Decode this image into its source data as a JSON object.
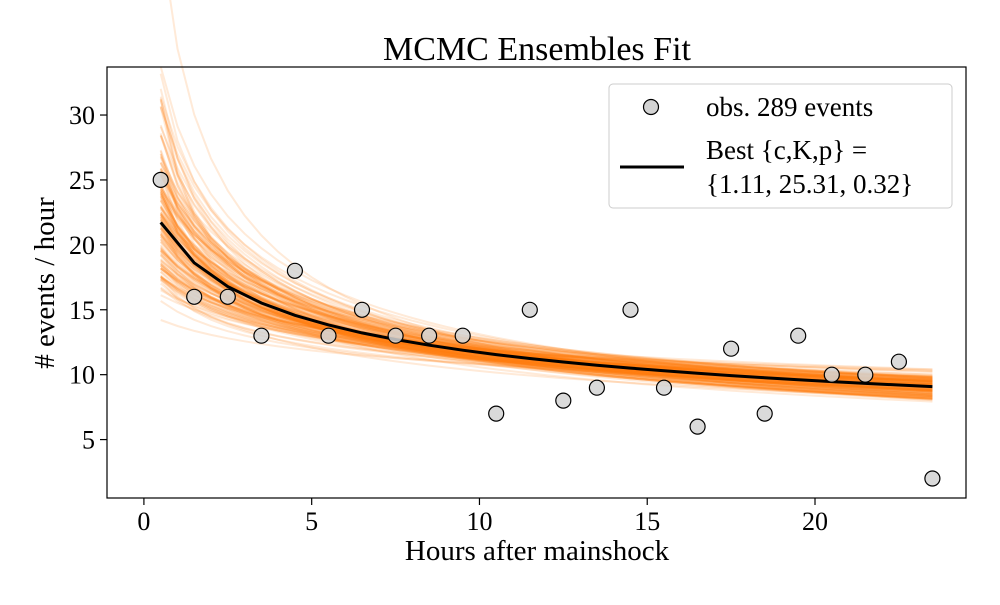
{
  "chart_data": {
    "type": "scatter",
    "title": "MCMC Ensembles Fit",
    "xlabel": "Hours after mainshock",
    "ylabel": "# events / hour",
    "xlim": [
      -1.1,
      24.5
    ],
    "ylim": [
      0.5,
      33.7
    ],
    "xticks": [
      0,
      5,
      10,
      15,
      20
    ],
    "yticks": [
      5,
      10,
      15,
      20,
      25,
      30
    ],
    "grid": false,
    "legend_position": "top-right",
    "series": [
      {
        "name": "obs. 289 events",
        "kind": "scatter",
        "color": "#d3d3d3",
        "edge_color": "#000000",
        "x": [
          0.5,
          1.5,
          2.5,
          3.5,
          4.5,
          5.5,
          6.5,
          7.5,
          8.5,
          9.5,
          10.5,
          11.5,
          12.5,
          13.5,
          14.5,
          15.5,
          16.5,
          17.5,
          18.5,
          19.5,
          20.5,
          21.5,
          22.5,
          23.5
        ],
        "y": [
          25,
          16,
          16,
          13,
          18,
          13,
          15,
          13,
          13,
          13,
          7,
          15,
          8,
          9,
          15,
          9,
          6,
          12,
          7,
          13,
          10,
          10,
          11,
          2
        ]
      },
      {
        "name_lines": [
          "Best {c,K,p} =",
          "{1.11, 25.31, 0.32}"
        ],
        "kind": "line",
        "color": "#000000",
        "model": "K/(t+c)^p",
        "params": {
          "c": 1.11,
          "K": 25.31,
          "p": 0.32
        },
        "x_range": [
          0.5,
          23.5
        ]
      },
      {
        "kind": "ensemble",
        "color": "#ff7f0e",
        "model": "K/(t+c)^p"
      }
    ]
  }
}
